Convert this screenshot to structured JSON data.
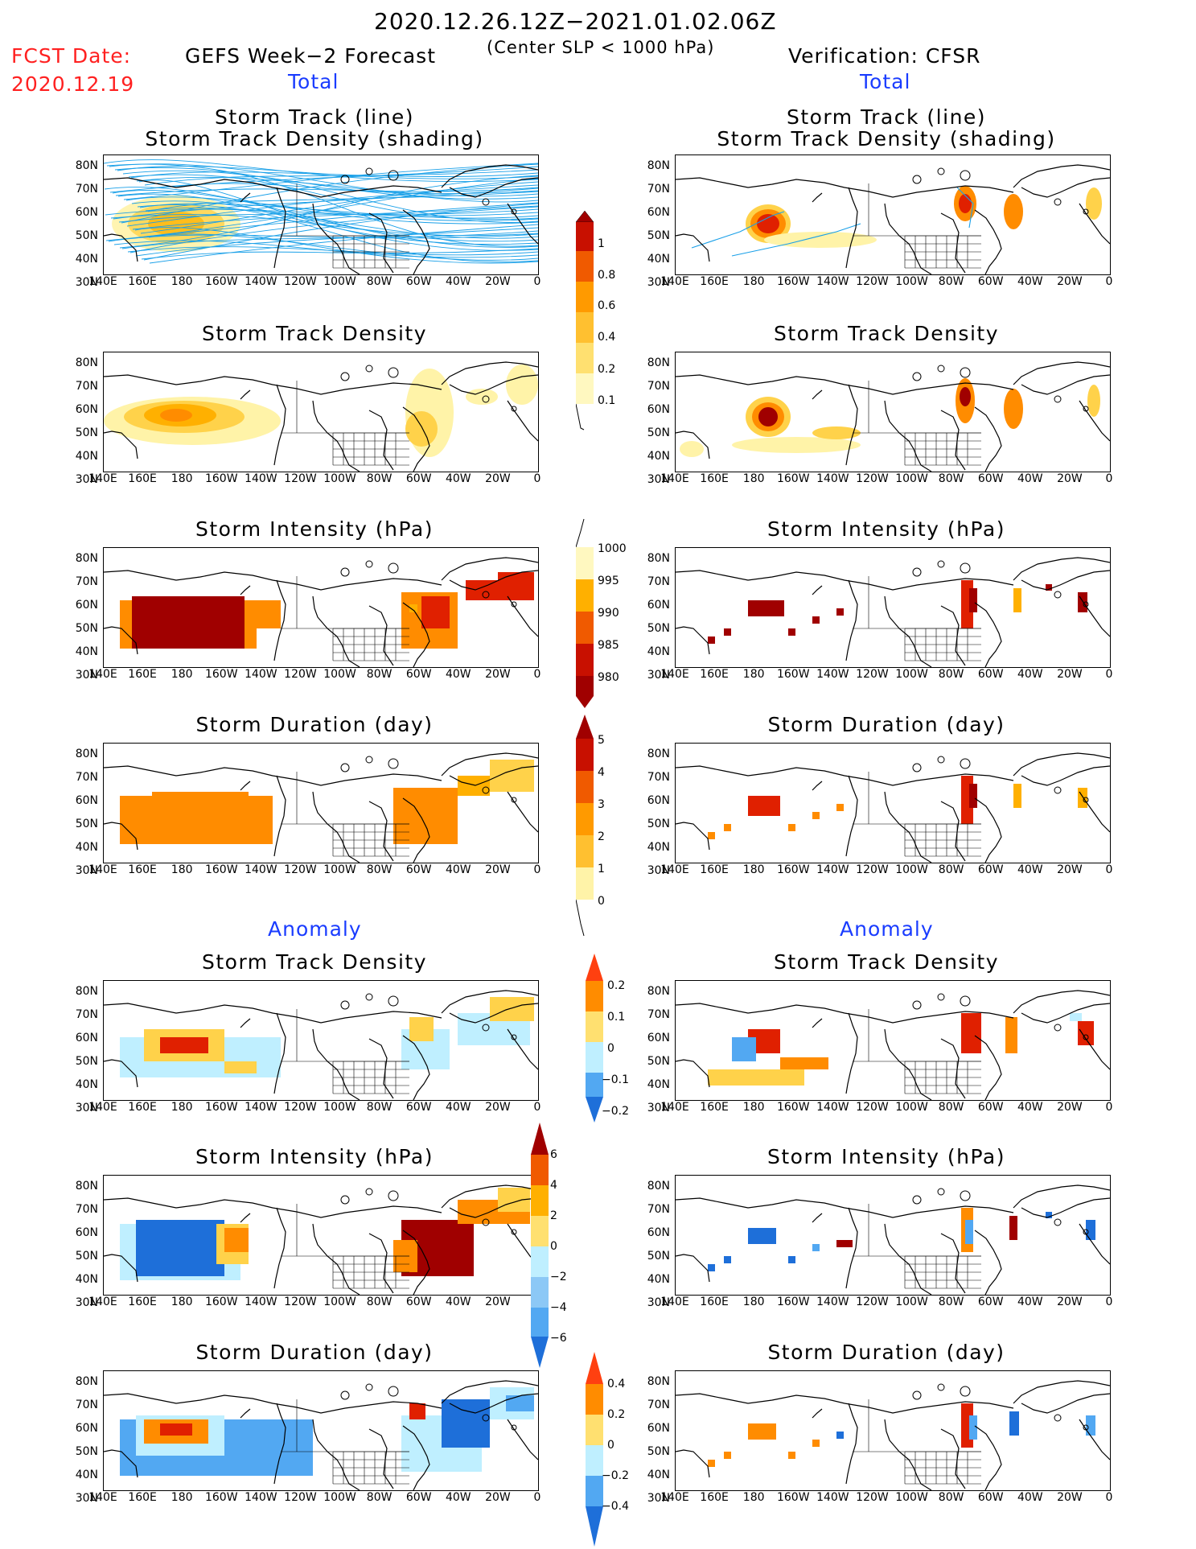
{
  "header": {
    "period": "2020.12.26.12Z−2021.01.02.06Z",
    "criterion": "(Center SLP < 1000 hPa)",
    "fcst_label": "FCST Date:",
    "fcst_date": "2020.12.19",
    "left_model": "GEFS Week−2 Forecast",
    "right_model": "Verification: CFSR",
    "total_label": "Total",
    "anomaly_label": "Anomaly"
  },
  "panel_titles": {
    "track_line": "Storm Track (line)",
    "track_shading": "Storm Track Density (shading)",
    "density": "Storm Track Density",
    "intensity": "Storm Intensity (hPa)",
    "duration": "Storm Duration (day)"
  },
  "axes": {
    "lat_labels": [
      "80N",
      "70N",
      "60N",
      "50N",
      "40N",
      "30N"
    ],
    "lon_labels": [
      "140E",
      "160E",
      "180",
      "160W",
      "140W",
      "120W",
      "100W",
      "80W",
      "60W",
      "40W",
      "20W",
      "0"
    ]
  },
  "colorbars": {
    "density_total": [
      "1",
      "0.8",
      "0.6",
      "0.4",
      "0.2",
      "0.1"
    ],
    "intensity_total": [
      "1000",
      "995",
      "990",
      "985",
      "980"
    ],
    "duration_total": [
      "5",
      "4",
      "3",
      "2",
      "1",
      "0"
    ],
    "density_anom": [
      "0.2",
      "0.1",
      "0",
      "−0.1",
      "−0.2"
    ],
    "intensity_anom": [
      "6",
      "4",
      "2",
      "0",
      "−2",
      "−4",
      "−6"
    ],
    "duration_anom": [
      "0.4",
      "0.2",
      "0",
      "−0.2",
      "−0.4"
    ]
  },
  "colors": {
    "dark_red": "#a00000",
    "red": "#e02000",
    "orange": "#ff8c00",
    "amber": "#ffb000",
    "gold": "#ffd24a",
    "pale_yellow": "#fff3a8",
    "light_blue": "#bfefff",
    "mid_blue": "#52a8f2",
    "blue": "#1e6fd9",
    "track_blue": "#1aa0e8"
  }
}
